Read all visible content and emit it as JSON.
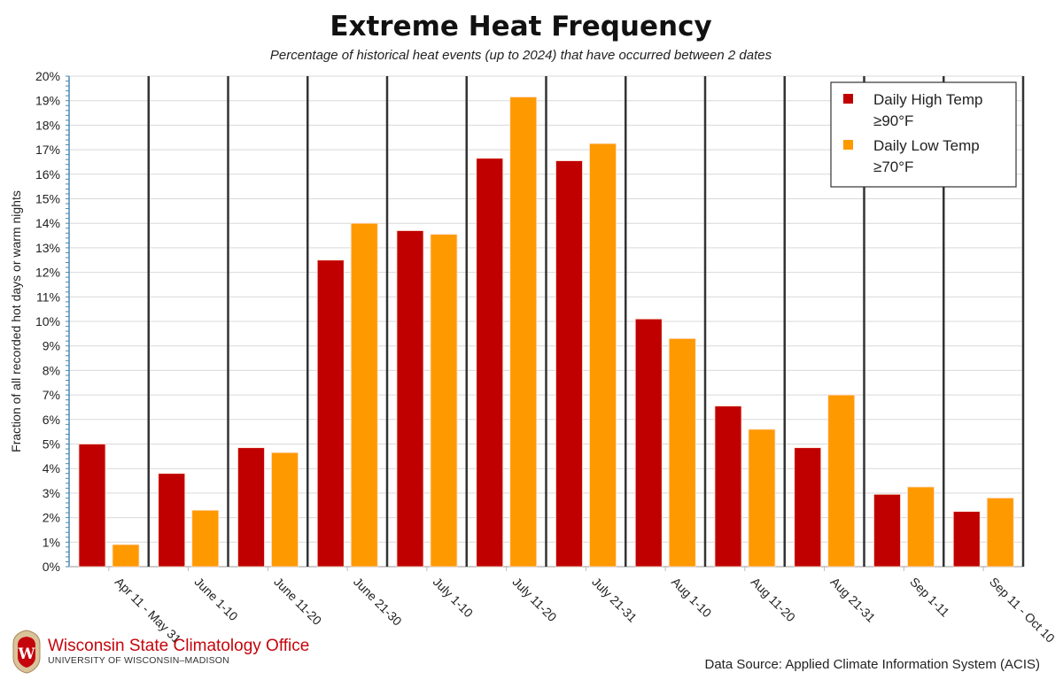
{
  "header": {
    "title": "Extreme Heat Frequency",
    "subtitle": "Percentage of historical heat events (up to 2024) that have occurred between 2 dates"
  },
  "footer": {
    "org_name": "Wisconsin State Climatology Office",
    "org_sub": "UNIVERSITY OF WISCONSIN–MADISON",
    "logo_letter": "W",
    "source": "Data Source: Applied Climate Information System (ACIS)"
  },
  "chart_data": {
    "type": "bar",
    "title": "Extreme Heat Frequency",
    "subtitle": "Percentage of historical heat events (up to 2024) that have occurred between 2 dates",
    "xlabel": "",
    "ylabel": "Fraction of all recorded hot days or warm nights",
    "ylim": [
      0,
      20
    ],
    "yticks": [
      "0%",
      "1%",
      "2%",
      "3%",
      "4%",
      "5%",
      "6%",
      "7%",
      "8%",
      "9%",
      "10%",
      "11%",
      "12%",
      "13%",
      "14%",
      "15%",
      "16%",
      "17%",
      "18%",
      "19%",
      "20%"
    ],
    "grid": true,
    "legend": "top-right",
    "categories": [
      "Apr 11 - May 31",
      "June 1-10",
      "June 11-20",
      "June 21-30",
      "July 1-10",
      "July 11-20",
      "July 21-31",
      "Aug 1-10",
      "Aug 11-20",
      "Aug 21-31",
      "Sep 1-11",
      "Sep 11 - Oct 10"
    ],
    "series": [
      {
        "name": "Daily High Temp ≥90°F",
        "color": "#c00000",
        "values": [
          5.0,
          3.8,
          4.85,
          12.5,
          13.7,
          16.65,
          16.55,
          10.1,
          6.55,
          4.85,
          2.95,
          2.25
        ]
      },
      {
        "name": "Daily Low Temp ≥70°F",
        "color": "#ff9900",
        "values": [
          0.9,
          2.3,
          4.65,
          14.0,
          13.55,
          19.15,
          17.25,
          9.3,
          5.6,
          7.0,
          3.25,
          2.8
        ]
      }
    ]
  }
}
